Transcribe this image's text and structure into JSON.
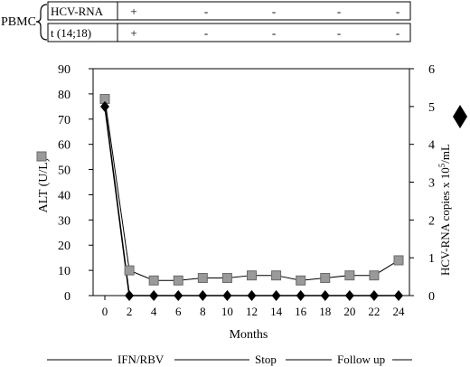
{
  "chart_data": {
    "type": "line",
    "pbmc_panel": {
      "group_label": "PBMC",
      "rows": [
        {
          "label": "HCV-RNA",
          "marks": [
            "+",
            "-",
            "-",
            "-",
            "-"
          ]
        },
        {
          "label": "t (14;18)",
          "marks": [
            "+",
            "-",
            "-",
            "-",
            "-"
          ]
        }
      ]
    },
    "x": [
      0,
      2,
      4,
      6,
      8,
      10,
      12,
      14,
      16,
      18,
      20,
      22,
      24
    ],
    "x_ticks": [
      "0",
      "2",
      "4",
      "6",
      "8",
      "10",
      "12",
      "14",
      "16",
      "18",
      "20",
      "22",
      "24"
    ],
    "xlabel": "Months",
    "xlim": [
      0,
      24
    ],
    "left_axis": {
      "label": "ALT (U/L)",
      "ylim": [
        0,
        90
      ],
      "ticks": [
        "0",
        "10",
        "20",
        "30",
        "40",
        "50",
        "60",
        "70",
        "80",
        "90"
      ]
    },
    "right_axis": {
      "label_main": "HCV-RNA copies x 10",
      "label_sup": "5",
      "label_end": "/mL",
      "ylim": [
        0,
        6
      ],
      "ticks": [
        "0",
        "1",
        "2",
        "3",
        "4",
        "5",
        "6"
      ]
    },
    "series": [
      {
        "axis": "left",
        "marker": "square",
        "color": "#9a9a9a",
        "values": [
          78,
          10,
          6,
          6,
          7,
          7,
          8,
          8,
          6,
          7,
          8,
          8,
          14
        ]
      },
      {
        "axis": "right",
        "marker": "diamond",
        "color": "#000000",
        "values": [
          5.0,
          0,
          0,
          0,
          0,
          0,
          0,
          0,
          0,
          0,
          0,
          0,
          0
        ]
      }
    ],
    "timeline": {
      "labels": [
        "IFN/RBV",
        "Stop",
        "Follow up"
      ]
    },
    "grid": false
  }
}
